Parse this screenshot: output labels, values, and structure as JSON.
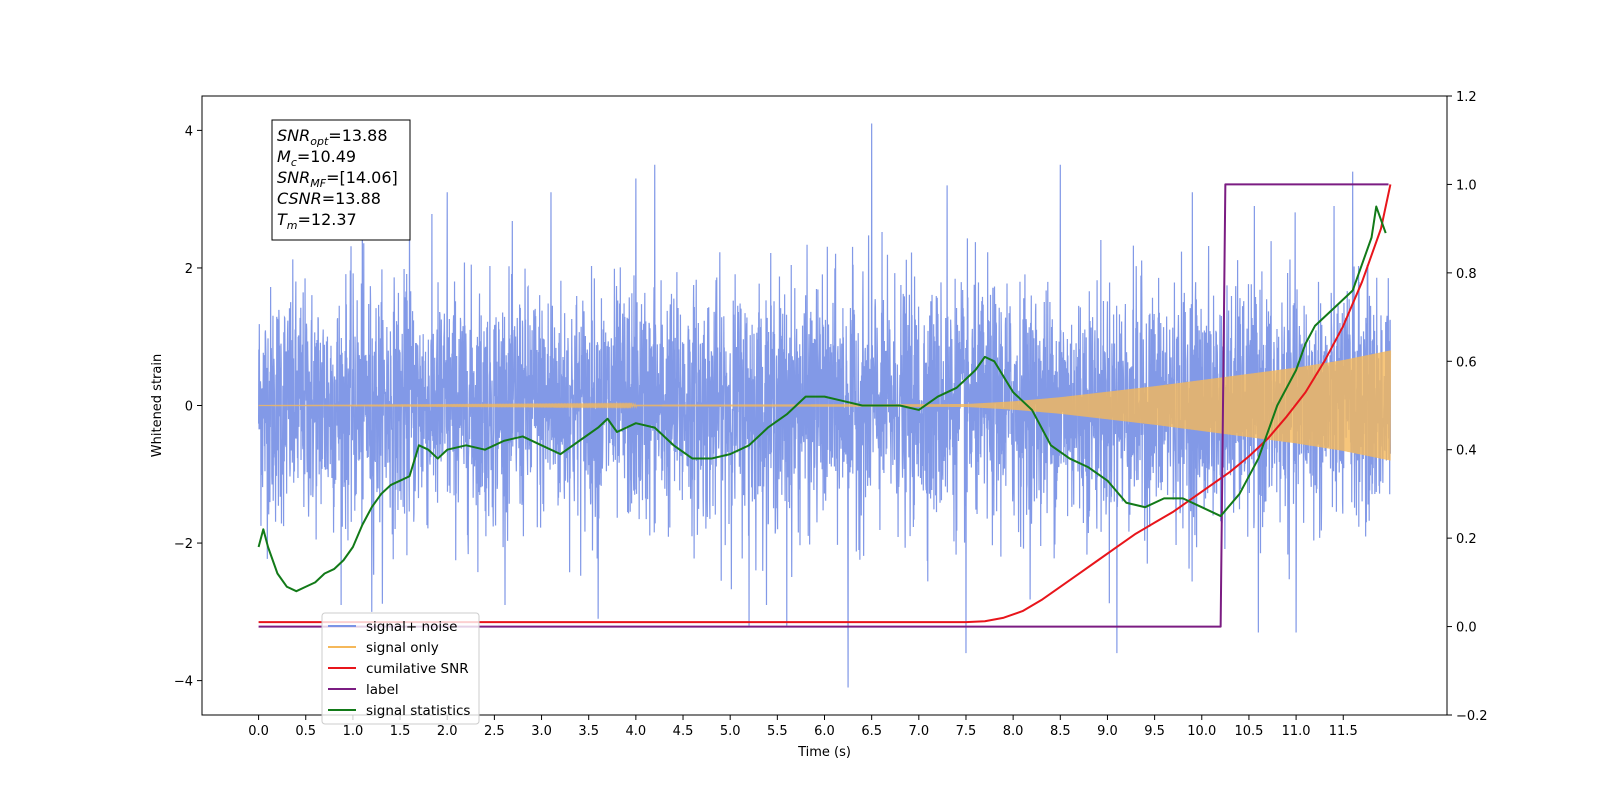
{
  "chart_data": {
    "type": "line",
    "xlabel": "Time (s)",
    "ylabel": "Whitened strain",
    "xlim": [
      -0.6,
      12.6
    ],
    "ylim": [
      -4.5,
      4.5
    ],
    "y2lim": [
      -0.2,
      1.2
    ],
    "x_ticks": [
      0.0,
      0.5,
      1.0,
      1.5,
      2.0,
      2.5,
      3.0,
      3.5,
      4.0,
      4.5,
      5.0,
      5.5,
      6.0,
      6.5,
      7.0,
      7.5,
      8.0,
      8.5,
      9.0,
      9.5,
      10.0,
      10.5,
      11.0,
      11.5
    ],
    "x_tick_labels": [
      "0.0",
      "0.5",
      "1.0",
      "1.5",
      "2.0",
      "2.5",
      "3.0",
      "3.5",
      "4.0",
      "4.5",
      "5.0",
      "5.5",
      "6.0",
      "6.5",
      "7.0",
      "7.5",
      "8.0",
      "8.5",
      "9.0",
      "9.5",
      "10.0",
      "10.5",
      "11.0",
      "11.5"
    ],
    "y_ticks": [
      -4,
      -2,
      0,
      2,
      4
    ],
    "y_tick_labels": [
      "−4",
      "−2",
      "0",
      "2",
      "4"
    ],
    "y2_ticks": [
      -0.2,
      0.0,
      0.2,
      0.4,
      0.6,
      0.8,
      1.0,
      1.2
    ],
    "y2_tick_labels": [
      "−0.2",
      "0.0",
      "0.2",
      "0.4",
      "0.6",
      "0.8",
      "1.0",
      "1.2"
    ],
    "legend_placement": "lower-left",
    "grid": false,
    "annotation": {
      "lines": [
        {
          "base": "SNR",
          "sub": "opt",
          "rest": "=13.88"
        },
        {
          "base": "M",
          "sub": "c",
          "rest": "=10.49"
        },
        {
          "base": "SNR",
          "sub": "MF",
          "rest": "=[14.06]"
        },
        {
          "base": "CSNR",
          "sub": "",
          "rest": "=13.88"
        },
        {
          "base": "T",
          "sub": "m",
          "rest": "=12.37"
        }
      ]
    },
    "series": [
      {
        "name": "signal+ noise",
        "axis": "left",
        "style": "noise",
        "color": "#7b93e6",
        "x_range": [
          0.0,
          12.0
        ],
        "envelope_typical": 1.7,
        "peaks": [
          {
            "x": 1.1,
            "y": 3.1
          },
          {
            "x": 1.6,
            "y": 3.3
          },
          {
            "x": 2.0,
            "y": 3.1
          },
          {
            "x": 3.1,
            "y": 3.1
          },
          {
            "x": 4.0,
            "y": 3.3
          },
          {
            "x": 4.2,
            "y": 3.5
          },
          {
            "x": 6.5,
            "y": 4.1
          },
          {
            "x": 8.5,
            "y": 3.5
          },
          {
            "x": 9.9,
            "y": 3.1
          },
          {
            "x": 11.6,
            "y": 3.4
          },
          {
            "x": 7.3,
            "y": 3.2
          }
        ],
        "troughs": [
          {
            "x": 1.2,
            "y": -3.0
          },
          {
            "x": 3.6,
            "y": -3.1
          },
          {
            "x": 5.2,
            "y": -3.2
          },
          {
            "x": 5.6,
            "y": -3.2
          },
          {
            "x": 6.25,
            "y": -4.1
          },
          {
            "x": 7.5,
            "y": -3.6
          },
          {
            "x": 9.1,
            "y": -3.6
          },
          {
            "x": 11.0,
            "y": -3.3
          },
          {
            "x": 10.6,
            "y": -3.3
          }
        ]
      },
      {
        "name": "signal only",
        "axis": "left",
        "style": "chirp",
        "color": "#f5b85a",
        "x_range": [
          0.0,
          12.0
        ],
        "amplitude": [
          [
            0.0,
            0.0
          ],
          [
            7.5,
            0.02
          ],
          [
            8.0,
            0.06
          ],
          [
            8.5,
            0.12
          ],
          [
            9.0,
            0.2
          ],
          [
            9.5,
            0.28
          ],
          [
            10.0,
            0.37
          ],
          [
            10.5,
            0.46
          ],
          [
            11.0,
            0.55
          ],
          [
            11.5,
            0.66
          ],
          [
            12.0,
            0.8
          ]
        ]
      },
      {
        "name": "cumilative SNR",
        "axis": "right",
        "color": "#e8151b",
        "x": [
          0.0,
          7.5,
          7.7,
          7.9,
          8.1,
          8.3,
          8.5,
          8.7,
          8.9,
          9.1,
          9.3,
          9.5,
          9.7,
          9.9,
          10.1,
          10.3,
          10.5,
          10.7,
          10.9,
          11.1,
          11.3,
          11.5,
          11.7,
          11.9,
          12.0
        ],
        "y": [
          0.01,
          0.01,
          0.012,
          0.02,
          0.035,
          0.06,
          0.09,
          0.12,
          0.15,
          0.18,
          0.21,
          0.235,
          0.26,
          0.29,
          0.32,
          0.35,
          0.385,
          0.425,
          0.475,
          0.53,
          0.6,
          0.68,
          0.78,
          0.9,
          1.0
        ]
      },
      {
        "name": "label",
        "axis": "right",
        "color": "#7b1c82",
        "x": [
          0.0,
          10.2,
          10.25,
          11.98
        ],
        "y": [
          0.0,
          0.0,
          1.0,
          1.0
        ]
      },
      {
        "name": "signal statistics",
        "axis": "right",
        "color": "#127a18",
        "x": [
          0.0,
          0.05,
          0.1,
          0.2,
          0.3,
          0.4,
          0.5,
          0.6,
          0.7,
          0.8,
          0.9,
          1.0,
          1.1,
          1.2,
          1.3,
          1.4,
          1.5,
          1.6,
          1.7,
          1.8,
          1.9,
          2.0,
          2.2,
          2.4,
          2.6,
          2.8,
          3.0,
          3.2,
          3.4,
          3.6,
          3.7,
          3.8,
          4.0,
          4.2,
          4.4,
          4.6,
          4.8,
          5.0,
          5.2,
          5.4,
          5.6,
          5.8,
          6.0,
          6.2,
          6.4,
          6.6,
          6.8,
          7.0,
          7.2,
          7.4,
          7.6,
          7.7,
          7.8,
          8.0,
          8.2,
          8.4,
          8.6,
          8.8,
          9.0,
          9.2,
          9.4,
          9.6,
          9.8,
          10.0,
          10.2,
          10.4,
          10.6,
          10.8,
          11.0,
          11.1,
          11.2,
          11.4,
          11.6,
          11.8,
          11.85,
          11.95
        ],
        "y": [
          0.18,
          0.22,
          0.18,
          0.12,
          0.09,
          0.08,
          0.09,
          0.1,
          0.12,
          0.13,
          0.15,
          0.18,
          0.23,
          0.27,
          0.3,
          0.32,
          0.33,
          0.34,
          0.41,
          0.4,
          0.38,
          0.4,
          0.41,
          0.4,
          0.42,
          0.43,
          0.41,
          0.39,
          0.42,
          0.45,
          0.47,
          0.44,
          0.46,
          0.45,
          0.41,
          0.38,
          0.38,
          0.39,
          0.41,
          0.45,
          0.48,
          0.52,
          0.52,
          0.51,
          0.5,
          0.5,
          0.5,
          0.49,
          0.52,
          0.54,
          0.58,
          0.61,
          0.6,
          0.53,
          0.49,
          0.41,
          0.38,
          0.36,
          0.33,
          0.28,
          0.27,
          0.29,
          0.29,
          0.27,
          0.25,
          0.3,
          0.38,
          0.5,
          0.58,
          0.64,
          0.68,
          0.72,
          0.76,
          0.88,
          0.95,
          0.89
        ]
      }
    ]
  }
}
